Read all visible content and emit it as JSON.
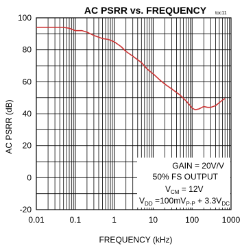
{
  "chart_data": {
    "type": "line",
    "title": "AC PSRR vs. FREQUENCY",
    "tag": "toc11",
    "xlabel": "FREQUENCY (kHz)",
    "ylabel": "AC PSRR (dB)",
    "xscale": "log",
    "xlim": [
      0.01,
      1000
    ],
    "ylim": [
      -20,
      100
    ],
    "xticks": [
      0.01,
      0.1,
      1,
      10,
      100,
      1000
    ],
    "xtick_labels": [
      "0.01",
      "0.1",
      "1",
      "10",
      "100",
      "1000"
    ],
    "yticks": [
      -20,
      0,
      20,
      40,
      60,
      80,
      100
    ],
    "ytick_labels": [
      "-20",
      "0",
      "20",
      "40",
      "60",
      "80",
      "100"
    ],
    "grid": true,
    "line_color": "#cc3333",
    "series": [
      {
        "x": [
          0.01,
          0.015,
          0.02,
          0.03,
          0.05,
          0.07,
          0.1,
          0.15,
          0.2,
          0.3,
          0.5,
          0.7,
          1,
          1.5,
          2,
          3,
          5,
          7,
          10,
          15,
          20,
          30,
          50,
          70,
          90,
          100,
          120,
          150,
          180,
          200,
          250,
          300,
          400,
          500,
          600,
          700
        ],
        "values": [
          94,
          94,
          94,
          94,
          94,
          93.5,
          92,
          92,
          91,
          89,
          87,
          86.5,
          85,
          82,
          79,
          76,
          72,
          68,
          65,
          61,
          58.5,
          55.5,
          51.5,
          48,
          45,
          43.5,
          42.5,
          43,
          44,
          44.5,
          44,
          44,
          45,
          47,
          48.5,
          49.5
        ]
      }
    ],
    "annotations": {
      "gain": "GAIN = 20V/V",
      "output": "50% FS OUTPUT",
      "vcm_main": "V",
      "vcm_sub": "CM",
      "vcm_value": " = 12V",
      "vdd_main": "V",
      "vdd_sub": "DD",
      "vdd_mid": " =100mV",
      "vdd_pp": "P-P",
      "vdd_plus": " + 3.3V",
      "vdd_dc": "DC"
    }
  }
}
